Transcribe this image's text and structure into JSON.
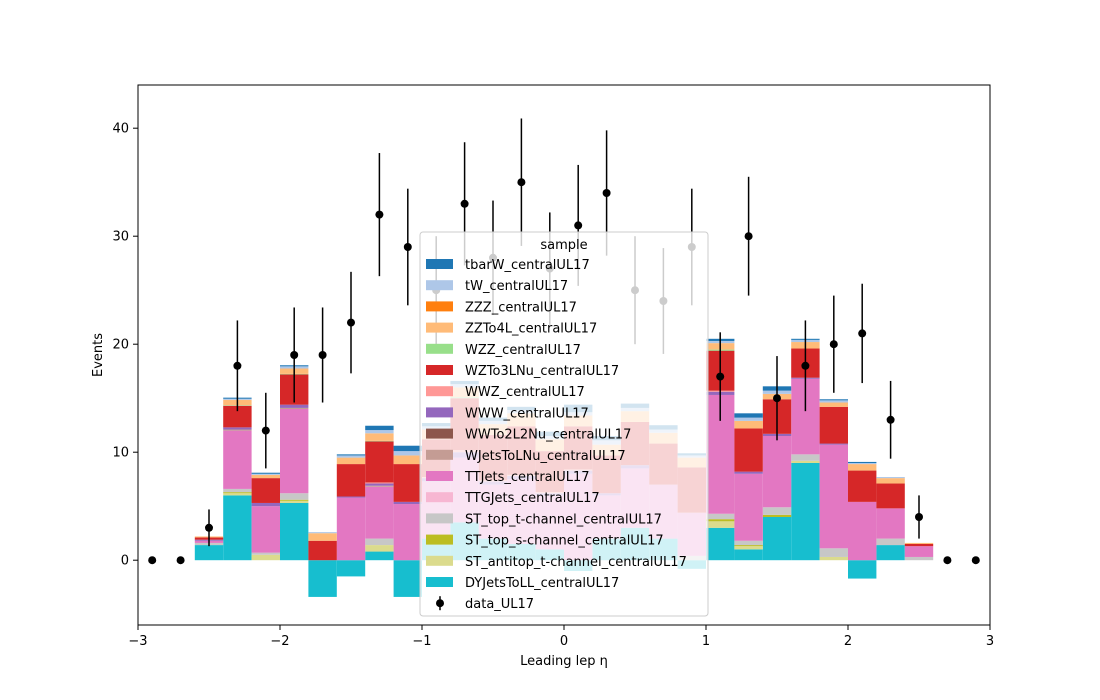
{
  "chart_data": {
    "type": "bar",
    "stacked": true,
    "xlabel": "Leading lep η",
    "ylabel": "Events",
    "xlim": [
      -3,
      3
    ],
    "ylim": [
      -6,
      44
    ],
    "xticks": [
      -3,
      -2,
      -1,
      0,
      1,
      2,
      3
    ],
    "xtick_labels": [
      "−3",
      "−2",
      "−1",
      "0",
      "1",
      "2",
      "3"
    ],
    "yticks": [
      0,
      10,
      20,
      30,
      40
    ],
    "ytick_labels": [
      "0",
      "10",
      "20",
      "30",
      "40"
    ],
    "grid": false,
    "legend": {
      "title": "sample",
      "placement": "center"
    },
    "bin_edges": [
      -2.6,
      -2.4,
      -2.2,
      -2.0,
      -1.8,
      -1.6,
      -1.4,
      -1.2,
      -1.0,
      -0.8,
      -0.6,
      -0.4,
      -0.2,
      0.0,
      0.2,
      0.4,
      0.6,
      0.8,
      1.0,
      1.2,
      1.4,
      1.6,
      1.8,
      2.0,
      2.2,
      2.4,
      2.6
    ],
    "series": [
      {
        "name": "DYJetsToLL_centralUL17",
        "color": "#17becf",
        "values": [
          1.4,
          6.0,
          0.0,
          5.3,
          -3.4,
          -1.5,
          0.8,
          -3.4,
          2.0,
          3.5,
          2.0,
          1.5,
          1.0,
          -1.0,
          2.0,
          3.0,
          2.0,
          -0.8,
          3.0,
          1.0,
          4.0,
          9.0,
          0.0,
          -1.7,
          1.4,
          0.0
        ]
      },
      {
        "name": "ST_antitop_t-channel_centralUL17",
        "color": "#dbdb8d",
        "values": [
          0,
          0.2,
          0.5,
          0.2,
          0,
          0,
          0.6,
          0,
          0,
          0,
          0,
          0,
          0,
          0,
          0,
          0,
          0,
          0,
          0.6,
          0.3,
          0,
          0.2,
          0.3,
          0,
          0,
          0
        ]
      },
      {
        "name": "ST_top_s-channel_centralUL17",
        "color": "#bcbd22",
        "values": [
          0,
          0.1,
          0,
          0.1,
          0,
          0,
          0,
          0,
          0,
          0,
          0,
          0,
          0,
          0,
          0,
          0,
          0,
          0,
          0.2,
          0.1,
          0.2,
          0,
          0,
          0,
          0,
          0
        ]
      },
      {
        "name": "ST_top_t-channel_centralUL17",
        "color": "#c7c7c7",
        "values": [
          0.2,
          0.3,
          0.2,
          0.6,
          0,
          0,
          0.6,
          0,
          0,
          0,
          0,
          0,
          0,
          0,
          0,
          0,
          0,
          0.4,
          0.5,
          0.4,
          0.7,
          0.6,
          0.8,
          0,
          0.6,
          0.3
        ]
      },
      {
        "name": "TTGJets_centralUL17",
        "color": "#f7b6d2",
        "values": [
          0,
          0,
          0,
          0,
          0,
          0,
          0,
          0,
          0,
          0,
          0,
          0,
          0,
          0,
          0,
          0,
          0,
          0,
          0,
          0,
          0,
          0,
          0,
          0,
          0,
          0
        ]
      },
      {
        "name": "TTJets_centralUL17",
        "color": "#e377c2",
        "values": [
          0.2,
          5.4,
          4.3,
          7.8,
          0,
          5.8,
          4.8,
          5.2,
          5.3,
          6.0,
          5.0,
          6.0,
          5.0,
          8.0,
          4.0,
          5.5,
          5.0,
          4.0,
          11.0,
          6.2,
          6.6,
          7.0,
          9.6,
          5.4,
          2.8,
          1.0
        ]
      },
      {
        "name": "WJetsToLNu_centralUL17",
        "color": "#c49c94",
        "values": [
          0,
          0.1,
          0,
          0.1,
          0,
          0,
          0.1,
          0,
          0,
          0,
          0,
          0,
          0,
          0,
          0,
          0,
          0,
          0,
          0,
          0,
          0,
          0,
          0,
          0,
          0,
          0
        ]
      },
      {
        "name": "WWTo2L2Nu_centralUL17",
        "color": "#8c564b",
        "values": [
          0,
          0,
          0,
          0,
          0,
          0,
          0,
          0,
          0,
          0,
          0,
          0,
          0,
          0,
          0,
          0,
          0,
          0,
          0,
          0,
          0,
          0,
          0,
          0,
          0,
          0
        ]
      },
      {
        "name": "WWW_centralUL17",
        "color": "#9467bd",
        "values": [
          0.1,
          0.2,
          0.3,
          0.3,
          0,
          0.1,
          0.2,
          0.2,
          0.3,
          0.5,
          0.3,
          0.3,
          0.2,
          0.3,
          0.2,
          0.3,
          0,
          0,
          0.3,
          0.2,
          0.2,
          0.1,
          0.1,
          0,
          0,
          0
        ]
      },
      {
        "name": "WWZ_centralUL17",
        "color": "#ff9896",
        "values": [
          0,
          0,
          0,
          0,
          0,
          0,
          0.1,
          0,
          0.1,
          0.2,
          0.1,
          0.1,
          0.1,
          0.1,
          0,
          0,
          0,
          0,
          0.1,
          0,
          0,
          0,
          0,
          0,
          0,
          0
        ]
      },
      {
        "name": "WZTo3LNu_centralUL17",
        "color": "#d62728",
        "values": [
          0.2,
          2.0,
          2.3,
          2.8,
          1.8,
          3.0,
          3.8,
          3.5,
          3.5,
          4.8,
          4.2,
          4.5,
          3.8,
          4.0,
          3.5,
          4.0,
          3.8,
          4.2,
          3.7,
          4.0,
          3.2,
          2.7,
          3.4,
          2.9,
          2.3,
          0.2
        ]
      },
      {
        "name": "WZZ_centralUL17",
        "color": "#98df8a",
        "values": [
          0,
          0.05,
          0,
          0.05,
          0,
          0,
          0.05,
          0,
          0,
          0.1,
          0,
          0,
          0,
          0,
          0,
          0,
          0,
          0,
          0.1,
          0,
          0,
          0,
          0,
          0,
          0,
          0
        ]
      },
      {
        "name": "ZZTo4L_centralUL17",
        "color": "#ffbb78",
        "values": [
          0.1,
          0.5,
          0.3,
          0.5,
          0.7,
          0.6,
          0.7,
          0.8,
          0.9,
          0.9,
          1.0,
          1.2,
          1.1,
          1.0,
          1.0,
          1.0,
          1.0,
          0.9,
          0.6,
          0.7,
          0.5,
          0.6,
          0.4,
          0.6,
          0.5,
          0.1
        ]
      },
      {
        "name": "ZZZ_centralUL17",
        "color": "#ff7f0e",
        "values": [
          0,
          0,
          0,
          0,
          0,
          0,
          0,
          0,
          0,
          0,
          0,
          0,
          0,
          0,
          0,
          0,
          0,
          0,
          0,
          0,
          0,
          0,
          0,
          0,
          0,
          0
        ]
      },
      {
        "name": "tW_centralUL17",
        "color": "#aec7e8",
        "values": [
          0,
          0.1,
          0.1,
          0.2,
          0.1,
          0.2,
          0.3,
          0.4,
          0.3,
          0.3,
          0.3,
          0.3,
          0.3,
          0.3,
          0.4,
          0.3,
          0.3,
          0.2,
          0.2,
          0.3,
          0.3,
          0.2,
          0.2,
          0.1,
          0.1,
          0
        ]
      },
      {
        "name": "tbarW_centralUL17",
        "color": "#1f77b4",
        "values": [
          0,
          0.1,
          0.1,
          0.1,
          0,
          0.1,
          0.4,
          0.5,
          0.3,
          0.3,
          0.3,
          0.3,
          0.4,
          0.7,
          0.4,
          0.4,
          0.4,
          0.2,
          0.2,
          0.4,
          0.4,
          0.1,
          0.1,
          0.1,
          0,
          0
        ]
      }
    ],
    "data_series": {
      "name": "data_UL17",
      "x": [
        -2.9,
        -2.7,
        -2.5,
        -2.3,
        -2.1,
        -1.9,
        -1.7,
        -1.5,
        -1.3,
        -1.1,
        -0.9,
        -0.7,
        -0.5,
        -0.3,
        -0.1,
        0.1,
        0.3,
        0.5,
        0.7,
        0.9,
        1.1,
        1.3,
        1.5,
        1.7,
        1.9,
        2.1,
        2.3,
        2.5,
        2.7,
        2.9
      ],
      "y": [
        0,
        0,
        3,
        18,
        12,
        19,
        19,
        22,
        32,
        29,
        25,
        33,
        28,
        35,
        27,
        31,
        34,
        25,
        24,
        29,
        17,
        30,
        15,
        18,
        20,
        21,
        13,
        4,
        0,
        0
      ],
      "yerr": [
        0,
        0,
        1.7,
        4.2,
        3.5,
        4.4,
        4.4,
        4.7,
        5.7,
        5.4,
        5.0,
        5.7,
        5.3,
        5.9,
        5.2,
        5.6,
        5.8,
        5.0,
        4.9,
        5.4,
        4.1,
        5.5,
        3.9,
        4.2,
        4.5,
        4.6,
        3.6,
        2.0,
        0,
        0
      ]
    }
  }
}
